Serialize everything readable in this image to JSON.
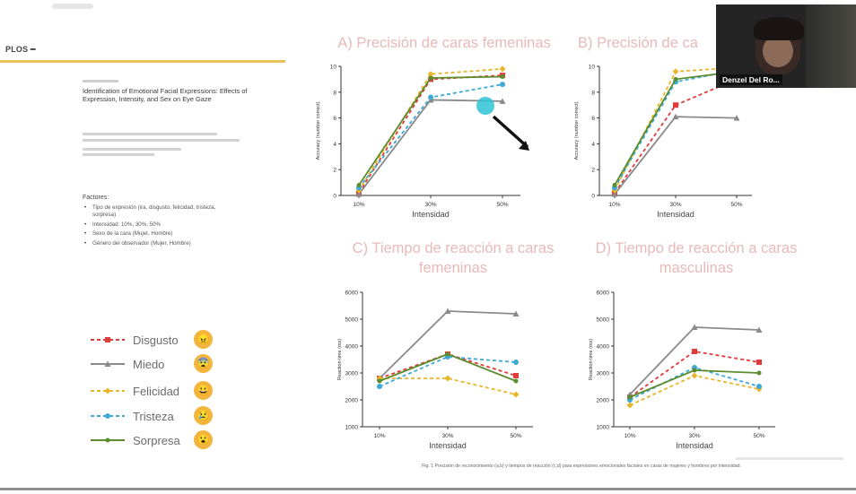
{
  "left_panel": {
    "journal_logo": "PLOS",
    "paper_title": "Identification of Emotional Facial Expressions: Effects of Expression, Intensity, and Sex on Eye Gaze",
    "factors_title": "Factores:",
    "factors": [
      "Tipo de expresión (ira, disgusto, felicidad, tristeza, sorpresa)",
      "Intensidad: 10%, 30%, 50%",
      "Sexo de la cara (Mujer, Hombre)",
      "Género del observador (Mujer, Hombre)"
    ]
  },
  "legend": [
    {
      "label": "Disgusto",
      "color": "#e23b3b",
      "dash": "4,3",
      "marker": "square",
      "emoji": "😠"
    },
    {
      "label": "Miedo",
      "color": "#8a8a8a",
      "dash": "",
      "marker": "triangle",
      "emoji": "😨"
    },
    {
      "label": "Felicidad",
      "color": "#e9b52a",
      "dash": "4,3",
      "marker": "diamond",
      "emoji": "😀"
    },
    {
      "label": "Tristeza",
      "color": "#3ca9d6",
      "dash": "4,3",
      "marker": "circle",
      "emoji": "😢"
    },
    {
      "label": "Sorpresa",
      "color": "#5b8c2e",
      "dash": "",
      "marker": "dot",
      "emoji": "😮"
    }
  ],
  "chart_data": [
    {
      "type": "line",
      "title": "A) Precisión de caras femeninas",
      "xlabel": "Intensidad",
      "ylabel": "Accuracy (number correct)",
      "categories": [
        "10%",
        "30%",
        "50%"
      ],
      "ylim": [
        0,
        10
      ],
      "yticks": [
        0,
        2,
        4,
        6,
        8,
        10
      ],
      "series": [
        {
          "name": "Disgusto",
          "values": [
            0.2,
            9.0,
            9.3
          ]
        },
        {
          "name": "Miedo",
          "values": [
            0.1,
            7.4,
            7.3
          ]
        },
        {
          "name": "Felicidad",
          "values": [
            0.4,
            9.4,
            9.8
          ]
        },
        {
          "name": "Tristeza",
          "values": [
            0.6,
            7.6,
            8.6
          ]
        },
        {
          "name": "Sorpresa",
          "values": [
            0.8,
            9.1,
            9.2
          ]
        }
      ]
    },
    {
      "type": "line",
      "title": "B) Precisión de ca",
      "xlabel": "Intensidad",
      "ylabel": "Accuracy (number correct)",
      "categories": [
        "10%",
        "30%",
        "50%"
      ],
      "ylim": [
        0,
        10
      ],
      "yticks": [
        0,
        2,
        4,
        6,
        8,
        10
      ],
      "series": [
        {
          "name": "Disgusto",
          "values": [
            0.2,
            7.0,
            9.0
          ]
        },
        {
          "name": "Miedo",
          "values": [
            0.1,
            6.1,
            6.0
          ]
        },
        {
          "name": "Felicidad",
          "values": [
            0.4,
            9.6,
            9.9
          ]
        },
        {
          "name": "Tristeza",
          "values": [
            0.6,
            8.8,
            9.7
          ]
        },
        {
          "name": "Sorpresa",
          "values": [
            0.8,
            9.0,
            9.6
          ]
        }
      ]
    },
    {
      "type": "line",
      "title": "C) Tiempo de reacción a caras femeninas",
      "xlabel": "Intensidad",
      "ylabel": "Reaction time (ms)",
      "categories": [
        "10%",
        "30%",
        "50%"
      ],
      "ylim": [
        1000,
        6000
      ],
      "yticks": [
        1000,
        2000,
        3000,
        4000,
        5000,
        6000
      ],
      "series": [
        {
          "name": "Disgusto",
          "values": [
            2800,
            3700,
            2900
          ]
        },
        {
          "name": "Miedo",
          "values": [
            2800,
            5300,
            5200
          ]
        },
        {
          "name": "Felicidad",
          "values": [
            2800,
            2800,
            2200
          ]
        },
        {
          "name": "Tristeza",
          "values": [
            2500,
            3600,
            3400
          ]
        },
        {
          "name": "Sorpresa",
          "values": [
            2700,
            3700,
            2700
          ]
        }
      ]
    },
    {
      "type": "line",
      "title": "D) Tiempo de reacción a caras masculinas",
      "xlabel": "Intensidad",
      "ylabel": "Reaction time (ms)",
      "categories": [
        "10%",
        "30%",
        "50%"
      ],
      "ylim": [
        1000,
        6000
      ],
      "yticks": [
        1000,
        2000,
        3000,
        4000,
        5000,
        6000
      ],
      "series": [
        {
          "name": "Disgusto",
          "values": [
            2100,
            3800,
            3400
          ]
        },
        {
          "name": "Miedo",
          "values": [
            2200,
            4700,
            4600
          ]
        },
        {
          "name": "Felicidad",
          "values": [
            1800,
            2900,
            2400
          ]
        },
        {
          "name": "Tristeza",
          "values": [
            2000,
            3200,
            2500
          ]
        },
        {
          "name": "Sorpresa",
          "values": [
            2100,
            3100,
            3000
          ]
        }
      ]
    }
  ],
  "figure_caption": "Fig. 1 Precisión de reconocimiento (a,b) y tiempos de reacción (c,d) para expresiones emocionales faciales en caras de mujeres y hombres por intensidad.",
  "webcam": {
    "participant_name": "Denzel Del Ro..."
  }
}
